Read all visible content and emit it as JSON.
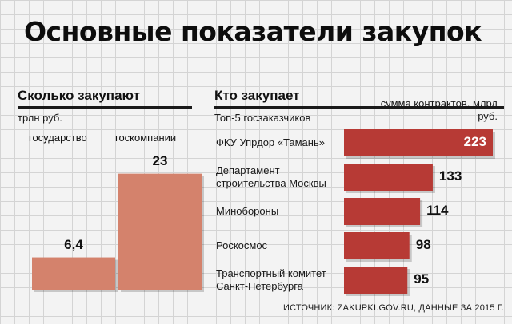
{
  "title": "Основные показатели закупок",
  "source": "ИСТОЧНИК: ZAKUPKI.GOV.RU, ДАННЫЕ ЗА 2015 Г.",
  "colors": {
    "light_bar": "#d4826c",
    "dark_bar": "#b73a35",
    "rule": "#1a1a1a"
  },
  "chart_data": [
    {
      "type": "bar",
      "title": "Сколько закупают",
      "ylabel": "трлн руб.",
      "categories": [
        "государство",
        "госкомпании"
      ],
      "values": [
        6.4,
        23
      ],
      "value_labels": [
        "6,4",
        "23"
      ],
      "ylim": [
        0,
        25
      ],
      "grid": true
    },
    {
      "type": "bar",
      "orientation": "horizontal",
      "title": "Кто закупает",
      "subtitle": "Топ-5 госзаказчиков",
      "xlabel": "сумма контрактов, млрд руб.",
      "categories": [
        "ФКУ Упрдор «Тамань»",
        "Департамент строительства Москвы",
        "Минобороны",
        "Роскосмос",
        "Транспортный комитет Санкт-Петербурга"
      ],
      "category_lines": [
        [
          "ФКУ Упрдор «Тамань»"
        ],
        [
          "Департамент",
          "строительства Москвы"
        ],
        [
          "Минобороны"
        ],
        [
          "Роскосмос"
        ],
        [
          "Транспортный комитет",
          "Санкт-Петербурга"
        ]
      ],
      "values": [
        223,
        133,
        114,
        98,
        95
      ],
      "value_labels": [
        "223",
        "133",
        "114",
        "98",
        "95"
      ],
      "grid": true
    }
  ]
}
